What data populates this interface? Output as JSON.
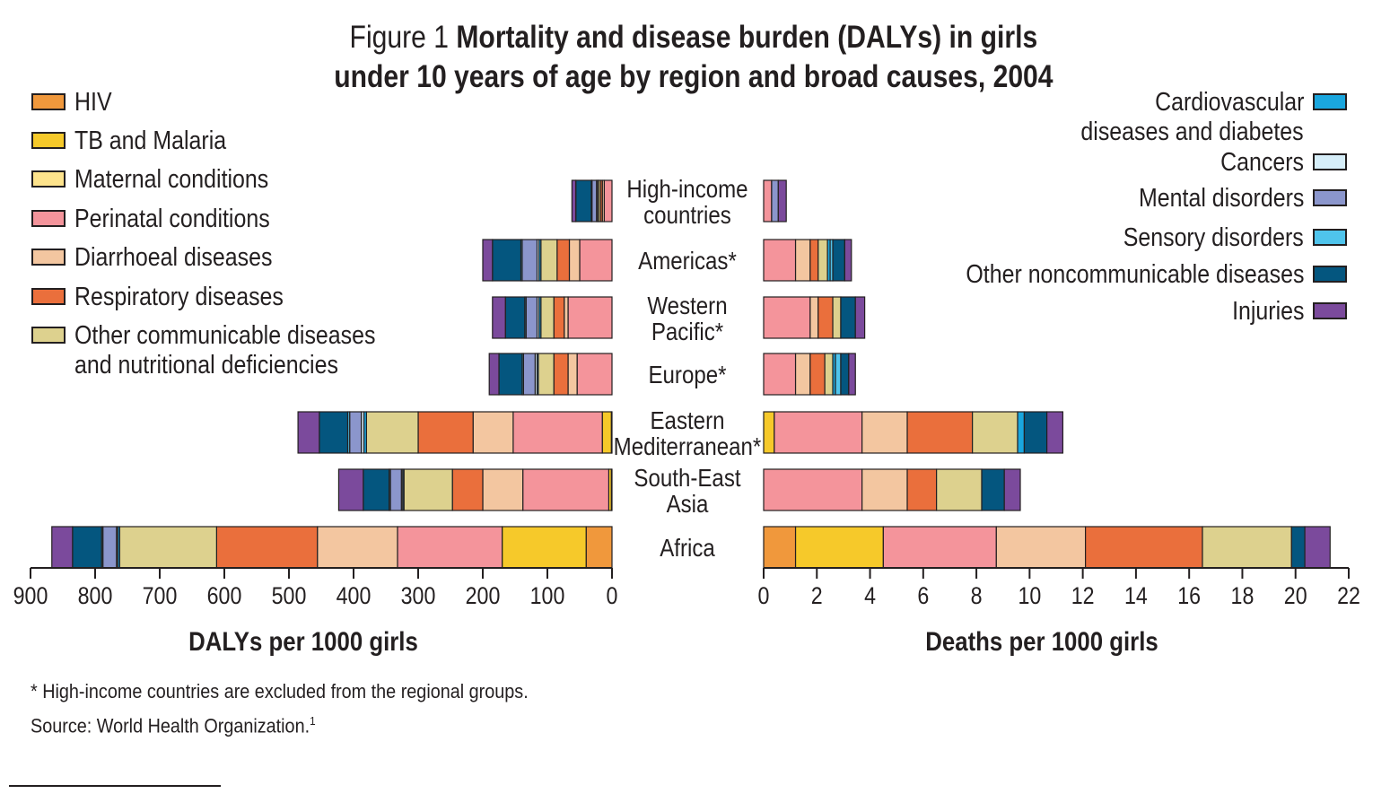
{
  "title": {
    "lead": "Figure 1",
    "line1": "Mortality and disease burden (DALYs) in girls",
    "line2": "under 10 years of age by region and broad causes, 2004"
  },
  "legend_left": [
    {
      "label": "HIV",
      "color": "#f0983c"
    },
    {
      "label": "TB and Malaria",
      "color": "#f6c92a"
    },
    {
      "label": "Maternal conditions",
      "color": "#fde38c"
    },
    {
      "label": "Perinatal conditions",
      "color": "#f4949b"
    },
    {
      "label": "Diarrhoeal diseases",
      "color": "#f3c6a0"
    },
    {
      "label": "Respiratory diseases",
      "color": "#ea6f3c"
    },
    {
      "label": "Other communicable diseases",
      "label2": "and nutritional deficiencies",
      "color": "#ddd18e"
    }
  ],
  "legend_right": [
    {
      "label": "Cardiovascular",
      "label2": "diseases and diabetes",
      "color": "#1aa6de"
    },
    {
      "label": "Cancers",
      "color": "#d6eef9"
    },
    {
      "label": "Mental disorders",
      "color": "#8b96cc"
    },
    {
      "label": "Sensory disorders",
      "color": "#4fc4ec"
    },
    {
      "label": "Other noncommunicable diseases",
      "color": "#04567f"
    },
    {
      "label": "Injuries",
      "color": "#7b4a9c"
    }
  ],
  "footnotes": {
    "note": "* High-income countries are excluded from the regional groups.",
    "source": "Source: World Health Organization.",
    "source_sup": "1"
  },
  "chart_data": [
    {
      "type": "bar",
      "orientation": "horizontal",
      "stacked": true,
      "xlabel": "DALYs per 1000 girls",
      "xlim": [
        0,
        900
      ],
      "x_reversed": true,
      "x_ticks": [
        900,
        800,
        700,
        600,
        500,
        400,
        300,
        200,
        100,
        0
      ],
      "categories": [
        "High-income|countries",
        "Americas*",
        "Western|Pacific*",
        "Europe*",
        "Eastern|Mediterranean*",
        "South-East|Asia",
        "Africa"
      ],
      "series": [
        {
          "name": "HIV",
          "values": [
            0,
            0,
            0,
            0,
            1,
            1,
            40
          ]
        },
        {
          "name": "TB and Malaria",
          "values": [
            0,
            0,
            0,
            0,
            14,
            4,
            130
          ]
        },
        {
          "name": "Maternal conditions",
          "values": [
            0,
            0,
            0,
            0,
            0,
            0,
            0
          ]
        },
        {
          "name": "Perinatal conditions",
          "values": [
            12,
            50,
            68,
            54,
            138,
            133,
            162
          ]
        },
        {
          "name": "Diarrhoeal diseases",
          "values": [
            3,
            16,
            6,
            14,
            62,
            62,
            124
          ]
        },
        {
          "name": "Respiratory diseases",
          "values": [
            3,
            19,
            16,
            22,
            85,
            47,
            156
          ]
        },
        {
          "name": "Other communicable diseases and nutritional deficiencies",
          "values": [
            3,
            25,
            20,
            24,
            80,
            75,
            150
          ]
        },
        {
          "name": "Cardiovascular diseases and diabetes",
          "values": [
            1,
            3,
            3,
            2,
            4,
            2,
            3
          ]
        },
        {
          "name": "Cancers",
          "values": [
            2,
            3,
            3,
            3,
            4,
            2,
            2
          ]
        },
        {
          "name": "Mental disorders",
          "values": [
            7,
            23,
            17,
            18,
            18,
            17,
            21
          ]
        },
        {
          "name": "Sensory disorders",
          "values": [
            1,
            2,
            2,
            2,
            3,
            2,
            2
          ]
        },
        {
          "name": "Other noncommunicable diseases",
          "values": [
            24,
            44,
            30,
            36,
            44,
            40,
            45
          ]
        },
        {
          "name": "Injuries",
          "values": [
            6,
            15,
            20,
            15,
            33,
            38,
            32
          ]
        }
      ]
    },
    {
      "type": "bar",
      "orientation": "horizontal",
      "stacked": true,
      "xlabel": "Deaths per 1000 girls",
      "xlim": [
        0,
        22
      ],
      "x_ticks": [
        0,
        2,
        4,
        6,
        8,
        10,
        12,
        14,
        16,
        18,
        20,
        22
      ],
      "categories": [
        "High-income|countries",
        "Americas*",
        "Western|Pacific*",
        "Europe*",
        "Eastern|Mediterranean*",
        "South-East|Asia",
        "Africa"
      ],
      "series": [
        {
          "name": "HIV",
          "values": [
            0,
            0,
            0,
            0,
            0,
            0,
            1.2
          ]
        },
        {
          "name": "TB and Malaria",
          "values": [
            0,
            0,
            0,
            0,
            0.4,
            0,
            3.3
          ]
        },
        {
          "name": "Maternal conditions",
          "values": [
            0,
            0,
            0,
            0,
            0,
            0,
            0
          ]
        },
        {
          "name": "Perinatal conditions",
          "values": [
            0.3,
            1.2,
            1.75,
            1.2,
            3.3,
            3.7,
            4.25
          ]
        },
        {
          "name": "Diarrhoeal diseases",
          "values": [
            0,
            0.55,
            0.3,
            0.55,
            1.7,
            1.7,
            3.35
          ]
        },
        {
          "name": "Respiratory diseases",
          "values": [
            0,
            0.3,
            0.55,
            0.55,
            2.45,
            1.1,
            4.4
          ]
        },
        {
          "name": "Other communicable diseases and nutritional deficiencies",
          "values": [
            0,
            0.35,
            0.3,
            0.3,
            1.7,
            1.7,
            3.35
          ]
        },
        {
          "name": "Cardiovascular diseases and diabetes",
          "values": [
            0,
            0.1,
            0,
            0.1,
            0.25,
            0,
            0
          ]
        },
        {
          "name": "Cancers",
          "values": [
            0,
            0,
            0,
            0,
            0,
            0,
            0
          ]
        },
        {
          "name": "Mental disorders",
          "values": [
            0.25,
            0,
            0,
            0,
            0,
            0,
            0
          ]
        },
        {
          "name": "Sensory disorders",
          "values": [
            0,
            0.1,
            0,
            0.2,
            0,
            0,
            0
          ]
        },
        {
          "name": "Other noncommunicable diseases",
          "values": [
            0,
            0.45,
            0.55,
            0.3,
            0.85,
            0.85,
            0.5
          ]
        },
        {
          "name": "Injuries",
          "values": [
            0.3,
            0.25,
            0.35,
            0.25,
            0.6,
            0.6,
            0.95
          ]
        }
      ]
    }
  ]
}
